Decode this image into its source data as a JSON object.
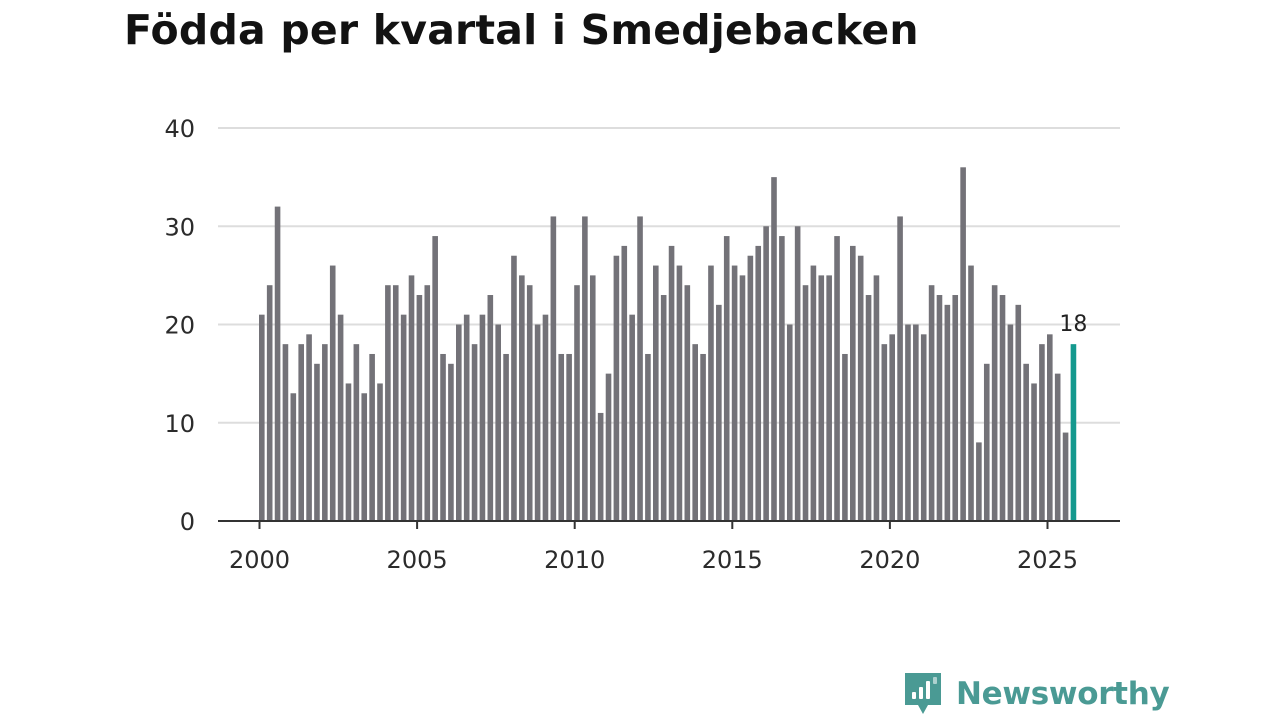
{
  "chart_data": {
    "type": "bar",
    "title": "Födda per kvartal i Smedjebacken",
    "xlabel": "",
    "ylabel": "",
    "ylim": [
      0,
      40
    ],
    "yticks": [
      "0",
      "10",
      "20",
      "30",
      "40"
    ],
    "xticks": [
      "2000",
      "2005",
      "2010",
      "2015",
      "2020",
      "2025"
    ],
    "x_start_year": 2000,
    "periods_per_year": 4,
    "values": [
      21,
      24,
      32,
      18,
      13,
      18,
      19,
      16,
      18,
      26,
      21,
      14,
      18,
      13,
      17,
      14,
      24,
      24,
      21,
      25,
      23,
      24,
      29,
      17,
      16,
      20,
      21,
      18,
      21,
      23,
      20,
      17,
      27,
      25,
      24,
      20,
      21,
      31,
      17,
      17,
      24,
      31,
      25,
      11,
      15,
      27,
      28,
      21,
      31,
      17,
      26,
      23,
      28,
      26,
      24,
      18,
      17,
      26,
      22,
      29,
      26,
      25,
      27,
      28,
      30,
      35,
      29,
      20,
      30,
      24,
      26,
      25,
      25,
      29,
      17,
      28,
      27,
      23,
      25,
      18,
      19,
      31,
      20,
      20,
      19,
      24,
      23,
      22,
      23,
      36,
      26,
      8,
      16,
      24,
      23,
      20,
      22,
      16,
      14,
      18,
      19,
      15,
      9,
      18
    ],
    "highlight_label": "18",
    "colors": {
      "bar": "#737278",
      "highlight": "#14998e",
      "grid": "#dddddd",
      "axis": "#333333"
    }
  },
  "brand": {
    "name": "Newsworthy",
    "icon": "newsworthy-logo-icon"
  }
}
